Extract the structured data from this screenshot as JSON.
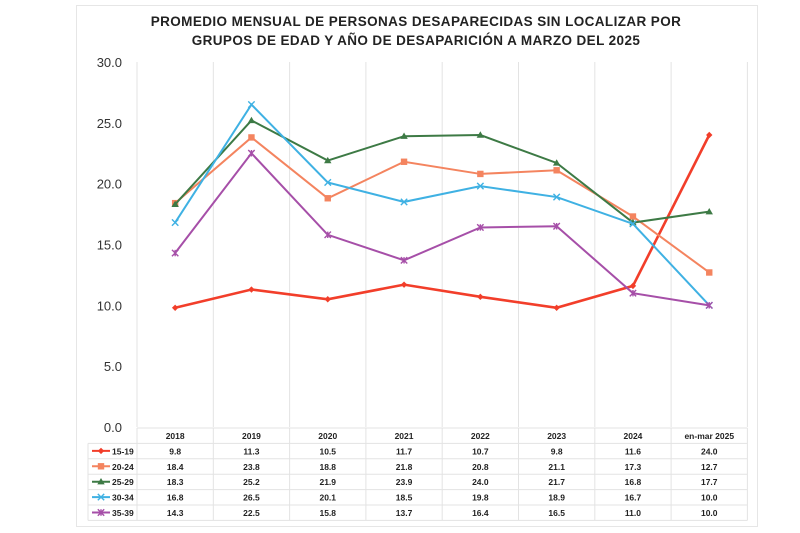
{
  "chart_data": {
    "type": "line",
    "title": "PROMEDIO MENSUAL DE PERSONAS DESAPARECIDAS SIN LOCALIZAR POR GRUPOS DE EDAD Y AÑO DE DESAPARICIÓN A MARZO DEL 2025",
    "title_lines": [
      "PROMEDIO MENSUAL DE PERSONAS DESAPARECIDAS SIN LOCALIZAR POR",
      "GRUPOS DE EDAD Y AÑO DE DESAPARICIÓN A MARZO DEL 2025"
    ],
    "categories": [
      "2018",
      "2019",
      "2020",
      "2021",
      "2022",
      "2023",
      "2024",
      "en-mar 2025"
    ],
    "ylim": [
      0,
      30
    ],
    "yticks": [
      "0.0",
      "5.0",
      "10.0",
      "15.0",
      "20.0",
      "25.0",
      "30.0"
    ],
    "grid": "vertical",
    "legend": "data-table",
    "series": [
      {
        "name": "15-19",
        "color": "#f23e2a",
        "marker": "diamond",
        "values": [
          9.8,
          11.3,
          10.5,
          11.7,
          10.7,
          9.8,
          11.6,
          24.0
        ],
        "labels": [
          "9.8",
          "11.3",
          "10.5",
          "11.7",
          "10.7",
          "9.8",
          "11.6",
          "24.0"
        ]
      },
      {
        "name": "20-24",
        "color": "#f4845f",
        "marker": "square",
        "values": [
          18.4,
          23.8,
          18.8,
          21.8,
          20.8,
          21.1,
          17.3,
          12.7
        ],
        "labels": [
          "18.4",
          "23.8",
          "18.8",
          "21.8",
          "20.8",
          "21.1",
          "17.3",
          "12.7"
        ]
      },
      {
        "name": "25-29",
        "color": "#3d7a45",
        "marker": "triangle",
        "values": [
          18.3,
          25.2,
          21.9,
          23.9,
          24.0,
          21.7,
          16.8,
          17.7
        ],
        "labels": [
          "18.3",
          "25.2",
          "21.9",
          "23.9",
          "24.0",
          "21.7",
          "16.8",
          "17.7"
        ]
      },
      {
        "name": "30-34",
        "color": "#3fb1e3",
        "marker": "x",
        "values": [
          16.8,
          26.5,
          20.1,
          18.5,
          19.8,
          18.9,
          16.7,
          10.0
        ],
        "labels": [
          "16.8",
          "26.5",
          "20.1",
          "18.5",
          "19.8",
          "18.9",
          "16.7",
          "10.0"
        ]
      },
      {
        "name": "35-39",
        "color": "#a64fa8",
        "marker": "star",
        "values": [
          14.3,
          22.5,
          15.8,
          13.7,
          16.4,
          16.5,
          11.0,
          10.0
        ],
        "labels": [
          "14.3",
          "22.5",
          "15.8",
          "13.7",
          "16.4",
          "16.5",
          "11.0",
          "10.0"
        ]
      }
    ]
  }
}
